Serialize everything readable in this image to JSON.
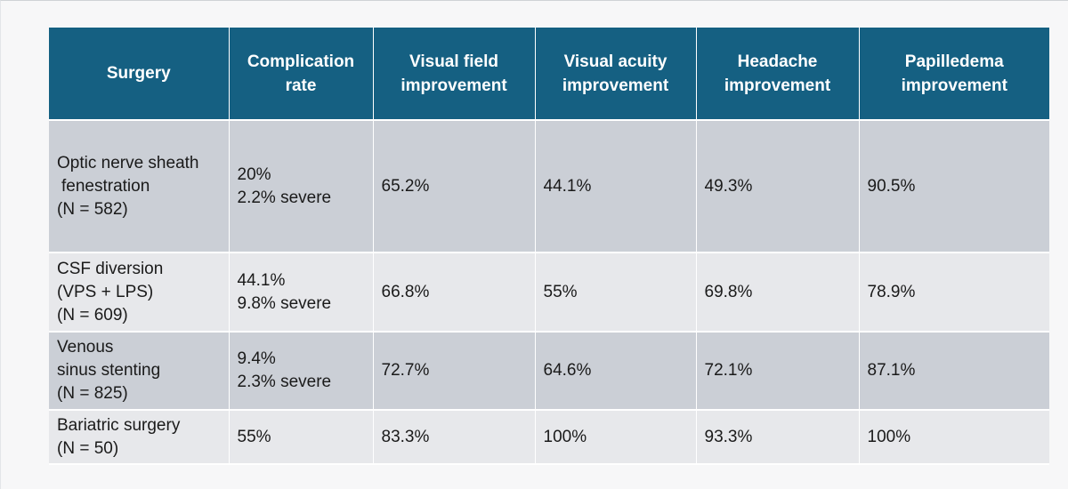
{
  "table": {
    "headers": [
      [
        "Surgery"
      ],
      [
        "Complication",
        "rate"
      ],
      [
        "Visual field",
        "improvement"
      ],
      [
        "Visual acuity",
        "improvement"
      ],
      [
        "Headache",
        "improvement"
      ],
      [
        "Papilledema",
        "improvement"
      ]
    ],
    "rows": [
      {
        "surgery": [
          "Optic nerve sheath",
          "fenestration",
          "(N = 582)"
        ],
        "complication": [
          "20%",
          "2.2% severe"
        ],
        "visual_field": "65.2%",
        "visual_acuity": "44.1%",
        "headache": "49.3%",
        "papilledema": "90.5%"
      },
      {
        "surgery": [
          "CSF diversion",
          "(VPS + LPS)",
          "(N = 609)"
        ],
        "complication": [
          "44.1%",
          "9.8% severe"
        ],
        "visual_field": "66.8%",
        "visual_acuity": "55%",
        "headache": "69.8%",
        "papilledema": "78.9%"
      },
      {
        "surgery": [
          "Venous",
          "sinus stenting",
          "(N = 825)"
        ],
        "complication": [
          "9.4%",
          "2.3% severe"
        ],
        "visual_field": "72.7%",
        "visual_acuity": "64.6%",
        "headache": "72.1%",
        "papilledema": "87.1%"
      },
      {
        "surgery": [
          "Bariatric surgery",
          "(N = 50)"
        ],
        "complication": [
          "55%"
        ],
        "visual_field": "83.3%",
        "visual_acuity": "100%",
        "headache": "93.3%",
        "papilledema": "100%"
      }
    ]
  },
  "colors": {
    "header_bg": "#156082",
    "row_dark": "#cbcfd6",
    "row_light": "#e7e8eb",
    "page_bg": "#f7f7f8"
  }
}
